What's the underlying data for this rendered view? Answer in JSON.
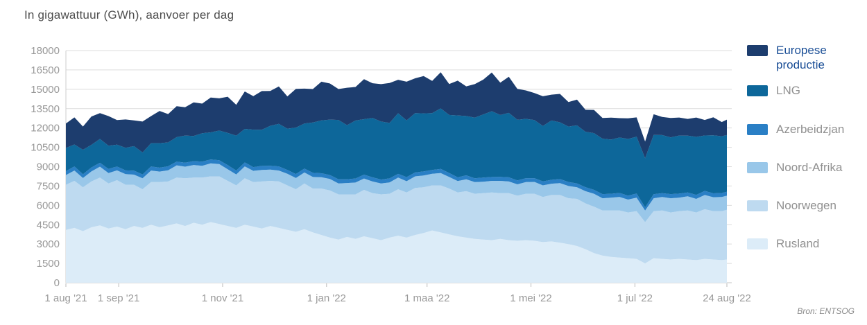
{
  "title": "In gigawattuur (GWh), aanvoer per dag",
  "source": "Bron: ENTSOG",
  "legend": {
    "items": [
      {
        "label": "Europese productie",
        "color": "#1d3d6e",
        "active": true
      },
      {
        "label": "LNG",
        "color": "#0d679a",
        "active": false
      },
      {
        "label": "Azerbeidzjan",
        "color": "#2a7fc5",
        "active": false
      },
      {
        "label": "Noord-Afrika",
        "color": "#99c7e9",
        "active": false
      },
      {
        "label": "Noorwegen",
        "color": "#bedaf0",
        "active": false
      },
      {
        "label": "Rusland",
        "color": "#dcecf8",
        "active": false
      }
    ]
  },
  "chart_data": {
    "type": "area",
    "stacked": true,
    "title": "In gigawattuur (GWh), aanvoer per dag",
    "ylabel": "GWh",
    "ylim": [
      0,
      18000
    ],
    "y_ticks": [
      0,
      1500,
      3000,
      4500,
      6000,
      7500,
      9000,
      10500,
      12000,
      13500,
      15000,
      16500,
      18000
    ],
    "grid": true,
    "legend_position": "right",
    "x_unit": "days since 1 aug 2021",
    "x_max": 388,
    "x_ticks": [
      {
        "day": 0,
        "label": "1 aug '21"
      },
      {
        "day": 31,
        "label": "1 sep '21"
      },
      {
        "day": 92,
        "label": "1 nov '21"
      },
      {
        "day": 153,
        "label": "1 jan '22"
      },
      {
        "day": 212,
        "label": "1 maa '22"
      },
      {
        "day": 273,
        "label": "1 mei '22"
      },
      {
        "day": 334,
        "label": "1 jul '22"
      },
      {
        "day": 388,
        "label": "24 aug '22"
      }
    ],
    "days": [
      0,
      5,
      10,
      15,
      20,
      25,
      30,
      35,
      40,
      45,
      50,
      55,
      60,
      65,
      70,
      75,
      80,
      85,
      90,
      95,
      100,
      105,
      110,
      115,
      120,
      125,
      130,
      135,
      140,
      145,
      150,
      155,
      160,
      165,
      170,
      175,
      180,
      185,
      190,
      195,
      200,
      205,
      210,
      215,
      220,
      225,
      230,
      235,
      240,
      245,
      250,
      255,
      260,
      265,
      270,
      275,
      280,
      285,
      290,
      295,
      300,
      305,
      310,
      315,
      320,
      325,
      330,
      335,
      340,
      345,
      350,
      355,
      360,
      365,
      370,
      375,
      380,
      385,
      388
    ],
    "series": [
      {
        "name": "Rusland",
        "color": "#dcecf8",
        "values": [
          4100,
          4250,
          4000,
          4300,
          4450,
          4200,
          4350,
          4150,
          4400,
          4250,
          4500,
          4300,
          4450,
          4600,
          4400,
          4650,
          4500,
          4700,
          4550,
          4400,
          4250,
          4500,
          4350,
          4200,
          4400,
          4250,
          4100,
          3950,
          4150,
          3900,
          3700,
          3500,
          3350,
          3550,
          3400,
          3600,
          3450,
          3300,
          3500,
          3650,
          3500,
          3700,
          3850,
          4050,
          3900,
          3750,
          3600,
          3500,
          3400,
          3350,
          3300,
          3400,
          3300,
          3250,
          3300,
          3250,
          3150,
          3200,
          3100,
          3000,
          2850,
          2600,
          2300,
          2100,
          2000,
          1950,
          1900,
          1850,
          1500,
          1900,
          1850,
          1800,
          1850,
          1800,
          1750,
          1850,
          1800,
          1750,
          1800
        ]
      },
      {
        "name": "Noorwegen",
        "color": "#bedaf0",
        "values": [
          3500,
          3650,
          3400,
          3550,
          3700,
          3500,
          3600,
          3450,
          3200,
          3000,
          3300,
          3500,
          3400,
          3550,
          3700,
          3500,
          3650,
          3550,
          3700,
          3500,
          3300,
          3600,
          3450,
          3650,
          3500,
          3600,
          3450,
          3300,
          3550,
          3400,
          3600,
          3650,
          3500,
          3300,
          3450,
          3600,
          3500,
          3550,
          3400,
          3600,
          3500,
          3650,
          3550,
          3500,
          3650,
          3550,
          3400,
          3600,
          3500,
          3600,
          3700,
          3550,
          3650,
          3500,
          3600,
          3650,
          3500,
          3600,
          3700,
          3550,
          3650,
          3550,
          3600,
          3500,
          3600,
          3650,
          3550,
          3700,
          3200,
          3650,
          3750,
          3650,
          3700,
          3800,
          3700,
          3850,
          3750,
          3800,
          3850
        ]
      },
      {
        "name": "Noord-Afrika",
        "color": "#99c7e9",
        "values": [
          750,
          800,
          720,
          780,
          850,
          800,
          760,
          820,
          780,
          850,
          900,
          820,
          870,
          950,
          900,
          980,
          920,
          1000,
          950,
          900,
          850,
          920,
          880,
          900,
          870,
          850,
          900,
          870,
          850,
          900,
          880,
          900,
          850,
          880,
          920,
          880,
          900,
          850,
          880,
          900,
          870,
          900,
          920,
          900,
          950,
          900,
          880,
          920,
          900,
          880,
          900,
          950,
          900,
          880,
          900,
          920,
          900,
          880,
          920,
          950,
          900,
          950,
          1000,
          950,
          1000,
          1050,
          1000,
          1050,
          900,
          1000,
          1050,
          1100,
          1050,
          1100,
          1050,
          1100,
          1080,
          1100,
          1100
        ]
      },
      {
        "name": "Azerbeidzjan",
        "color": "#2a7fc5",
        "values": [
          300,
          320,
          290,
          310,
          300,
          320,
          300,
          290,
          310,
          300,
          320,
          300,
          310,
          290,
          310,
          300,
          320,
          310,
          300,
          320,
          300,
          310,
          290,
          310,
          300,
          320,
          300,
          310,
          300,
          320,
          310,
          300,
          320,
          290,
          310,
          300,
          320,
          300,
          310,
          290,
          320,
          300,
          310,
          300,
          320,
          310,
          290,
          310,
          300,
          320,
          300,
          310,
          320,
          300,
          310,
          290,
          310,
          300,
          320,
          310,
          300,
          310,
          300,
          320,
          300,
          310,
          300,
          320,
          250,
          310,
          300,
          320,
          310,
          300,
          310,
          320,
          300,
          310,
          300
        ]
      },
      {
        "name": "LNG",
        "color": "#0d679a",
        "values": [
          1800,
          1700,
          1900,
          1750,
          1850,
          1800,
          1700,
          1750,
          1900,
          1700,
          1800,
          1900,
          1850,
          1900,
          2100,
          1950,
          2200,
          2100,
          2300,
          2500,
          2700,
          2600,
          2900,
          2800,
          3100,
          3300,
          3200,
          3600,
          3500,
          3900,
          4100,
          4300,
          4600,
          4200,
          4500,
          4300,
          4600,
          4500,
          4300,
          4700,
          4400,
          4600,
          4500,
          4400,
          4700,
          4500,
          4800,
          4600,
          4700,
          4900,
          5100,
          4800,
          5000,
          4700,
          4600,
          4500,
          4300,
          4600,
          4400,
          4300,
          4500,
          4300,
          4400,
          4300,
          4200,
          4300,
          4400,
          4400,
          3800,
          4600,
          4500,
          4400,
          4500,
          4400,
          4500,
          4300,
          4500,
          4400,
          4400
        ]
      },
      {
        "name": "Europese productie",
        "color": "#1d3d6e",
        "values": [
          1900,
          2100,
          1800,
          2200,
          2000,
          2300,
          1900,
          2200,
          2000,
          2400,
          2100,
          2500,
          2200,
          2400,
          2200,
          2600,
          2300,
          2700,
          2500,
          2800,
          2400,
          2900,
          2600,
          3000,
          2700,
          2900,
          2500,
          3000,
          2700,
          2600,
          3000,
          2800,
          2400,
          2900,
          2600,
          3100,
          2700,
          2900,
          3100,
          2600,
          3000,
          2700,
          2900,
          2500,
          2800,
          2400,
          2700,
          2300,
          2600,
          2700,
          3000,
          2500,
          2800,
          2400,
          2200,
          2100,
          2300,
          2000,
          2200,
          1900,
          2000,
          1700,
          1800,
          1600,
          1700,
          1500,
          1600,
          1500,
          1300,
          1600,
          1400,
          1500,
          1400,
          1300,
          1500,
          1200,
          1400,
          1100,
          1200
        ]
      }
    ]
  }
}
